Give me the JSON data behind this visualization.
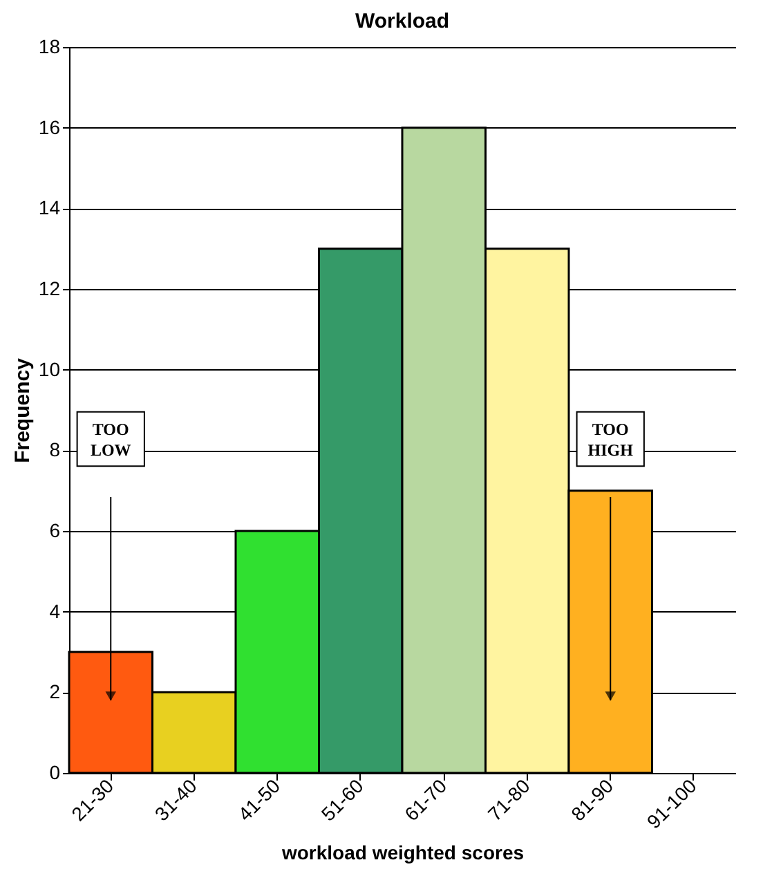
{
  "chart_data": {
    "type": "bar",
    "title": "Workload",
    "xlabel": "workload weighted scores",
    "ylabel": "Frequency",
    "categories": [
      "21-30",
      "31-40",
      "41-50",
      "51-60",
      "61-70",
      "71-80",
      "81-90",
      "91-100"
    ],
    "values": [
      3,
      2,
      6,
      13,
      16,
      13,
      7,
      null
    ],
    "colors": [
      "#ff5a10",
      "#e8d020",
      "#30e030",
      "#359a68",
      "#b8d8a0",
      "#fff4a0",
      "#ffb020",
      null
    ],
    "ylim": [
      0,
      18
    ],
    "yticks": [
      0,
      2,
      4,
      6,
      8,
      10,
      12,
      14,
      16,
      18
    ],
    "grid": "y",
    "annotations": [
      "TOO LOW",
      "TOO HIGH"
    ]
  }
}
